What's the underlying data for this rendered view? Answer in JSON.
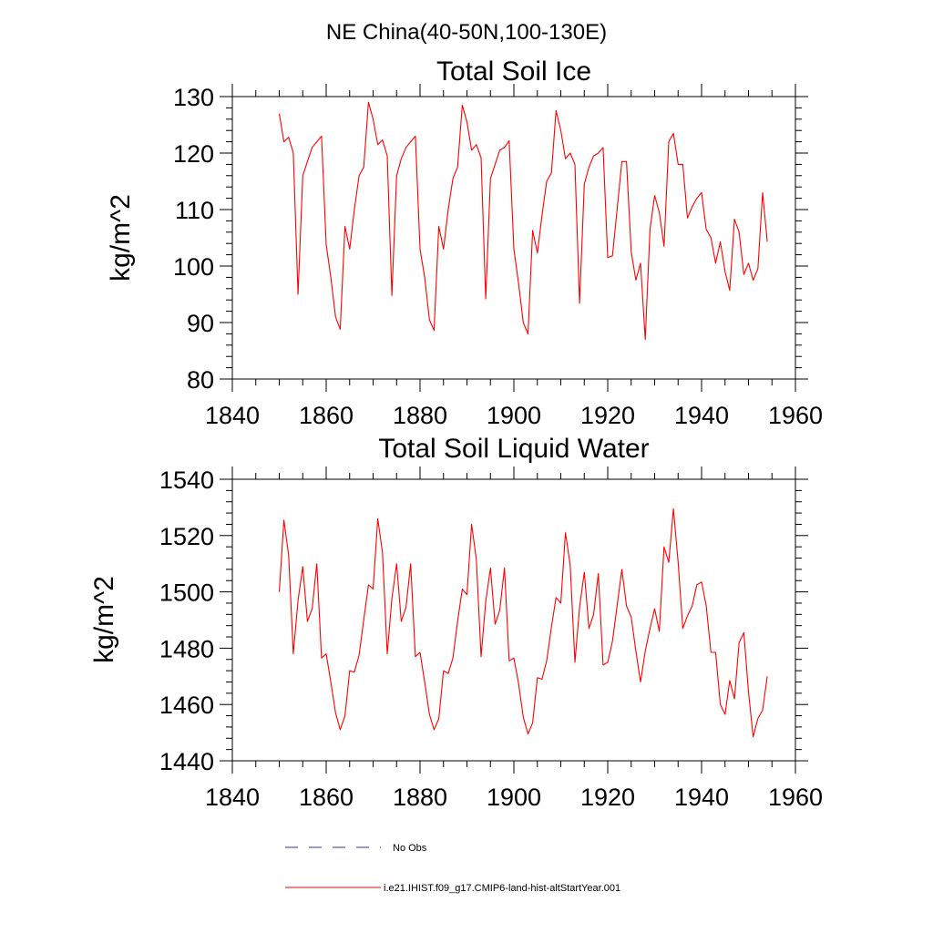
{
  "figure_title": "NE China(40-50N,100-130E)",
  "legend": [
    {
      "label": "No Obs",
      "color": "#333399",
      "dash": true
    },
    {
      "label": "i.e21.IHIST.f09_g17.CMIP6-land-hist-altStartYear.001",
      "color": "#ff0000",
      "dash": false
    }
  ],
  "chart_data": [
    {
      "type": "line",
      "title": "Total Soil Ice",
      "xlabel": "",
      "ylabel": "kg/m^2",
      "xlim": [
        1840,
        1960
      ],
      "ylim": [
        80,
        130
      ],
      "xticks": [
        1840,
        1860,
        1880,
        1900,
        1920,
        1940,
        1960
      ],
      "yticks": [
        80,
        90,
        100,
        110,
        120,
        130
      ],
      "grid": false,
      "series": [
        {
          "name": "i.e21.IHIST.f09_g17.CMIP6-land-hist-altStartYear.001",
          "color": "#ff0000",
          "x": [
            1850,
            1851,
            1852,
            1853,
            1854,
            1855,
            1856,
            1857,
            1858,
            1859,
            1860,
            1861,
            1862,
            1863,
            1864,
            1865,
            1866,
            1867,
            1868,
            1869,
            1870,
            1871,
            1872,
            1873,
            1874,
            1875,
            1876,
            1877,
            1878,
            1879,
            1880,
            1881,
            1882,
            1883,
            1884,
            1885,
            1886,
            1887,
            1888,
            1889,
            1890,
            1891,
            1892,
            1893,
            1894,
            1895,
            1896,
            1897,
            1898,
            1899,
            1900,
            1901,
            1902,
            1903,
            1904,
            1905,
            1906,
            1907,
            1908,
            1909,
            1910,
            1911,
            1912,
            1913,
            1914,
            1915,
            1916,
            1917,
            1918,
            1919,
            1920,
            1921,
            1922,
            1923,
            1924,
            1925,
            1926,
            1927,
            1928,
            1929,
            1930,
            1931,
            1932,
            1933,
            1934,
            1935,
            1936,
            1937,
            1938,
            1939,
            1940,
            1941,
            1942,
            1943,
            1944,
            1945,
            1946,
            1947,
            1948,
            1949,
            1950,
            1951,
            1952,
            1953,
            1954
          ],
          "y": [
            127,
            122,
            122.8,
            120,
            95,
            116,
            118.5,
            121,
            122,
            123,
            103.8,
            98,
            91,
            88.8,
            107,
            103,
            110,
            116,
            117.5,
            129,
            126,
            121.5,
            122.3,
            119.5,
            94.8,
            116,
            119,
            121,
            122,
            123,
            103,
            98,
            90.5,
            88.6,
            107,
            103,
            110,
            115.5,
            117.5,
            128.5,
            125.5,
            120.5,
            121.5,
            119.2,
            94.2,
            115.5,
            118,
            120.5,
            121,
            122.2,
            103,
            97,
            90,
            88,
            106.3,
            102.3,
            109,
            115,
            116.5,
            127.5,
            124,
            119,
            120,
            118,
            93.4,
            114.5,
            117.5,
            119.5,
            120,
            121,
            101.5,
            101.8,
            110,
            118.5,
            118.5,
            102.5,
            97.5,
            100.5,
            87,
            106.5,
            112.5,
            109.5,
            103.5,
            122,
            123.5,
            118,
            118,
            108.5,
            110.5,
            112,
            113,
            106.5,
            105,
            100.5,
            104.3,
            99,
            95.7,
            108.3,
            106,
            98.5,
            100.5,
            97.5,
            99.5,
            113,
            104.3
          ]
        }
      ]
    },
    {
      "type": "line",
      "title": "Total Soil Liquid Water",
      "xlabel": "",
      "ylabel": "kg/m^2",
      "xlim": [
        1840,
        1960
      ],
      "ylim": [
        1440,
        1540
      ],
      "xticks": [
        1840,
        1860,
        1880,
        1900,
        1920,
        1940,
        1960
      ],
      "yticks": [
        1440,
        1460,
        1480,
        1500,
        1520,
        1540
      ],
      "grid": false,
      "series": [
        {
          "name": "i.e21.IHIST.f09_g17.CMIP6-land-hist-altStartYear.001",
          "color": "#ff0000",
          "x": [
            1850,
            1851,
            1852,
            1853,
            1854,
            1855,
            1856,
            1857,
            1858,
            1859,
            1860,
            1861,
            1862,
            1863,
            1864,
            1865,
            1866,
            1867,
            1868,
            1869,
            1870,
            1871,
            1872,
            1873,
            1874,
            1875,
            1876,
            1877,
            1878,
            1879,
            1880,
            1881,
            1882,
            1883,
            1884,
            1885,
            1886,
            1887,
            1888,
            1889,
            1890,
            1891,
            1892,
            1893,
            1894,
            1895,
            1896,
            1897,
            1898,
            1899,
            1900,
            1901,
            1902,
            1903,
            1904,
            1905,
            1906,
            1907,
            1908,
            1909,
            1910,
            1911,
            1912,
            1913,
            1914,
            1915,
            1916,
            1917,
            1918,
            1919,
            1920,
            1921,
            1922,
            1923,
            1924,
            1925,
            1926,
            1927,
            1928,
            1929,
            1930,
            1931,
            1932,
            1933,
            1934,
            1935,
            1936,
            1937,
            1938,
            1939,
            1940,
            1941,
            1942,
            1943,
            1944,
            1945,
            1946,
            1947,
            1948,
            1949,
            1950,
            1951,
            1952,
            1953,
            1954
          ],
          "y": [
            1500,
            1525.5,
            1513,
            1478,
            1497,
            1509,
            1489.5,
            1494,
            1510,
            1476.5,
            1478,
            1468,
            1457,
            1451,
            1456,
            1472,
            1471.5,
            1477.5,
            1490,
            1502.5,
            1501,
            1526,
            1514,
            1478,
            1497.5,
            1510,
            1489.5,
            1494.5,
            1510,
            1477,
            1478.5,
            1468,
            1456.5,
            1451,
            1455,
            1472,
            1471,
            1476.5,
            1489.5,
            1501,
            1499,
            1524,
            1511.5,
            1477,
            1496.5,
            1508.5,
            1488.5,
            1493.5,
            1508.5,
            1475.5,
            1476.5,
            1467.5,
            1455.5,
            1449.5,
            1453.5,
            1469.5,
            1469,
            1475.5,
            1487.5,
            1498,
            1496,
            1521,
            1509.5,
            1475,
            1494.5,
            1507,
            1487,
            1492,
            1506.5,
            1474,
            1475,
            1482.5,
            1495,
            1508,
            1495,
            1491,
            1479,
            1468,
            1479,
            1487,
            1494,
            1486,
            1516,
            1510.5,
            1529.5,
            1510.5,
            1487,
            1491.5,
            1495,
            1502.5,
            1503.5,
            1495,
            1478.5,
            1478.5,
            1460,
            1456.5,
            1468.5,
            1462,
            1482,
            1485.5,
            1464.5,
            1448.5,
            1455,
            1458,
            1470
          ]
        }
      ]
    }
  ]
}
